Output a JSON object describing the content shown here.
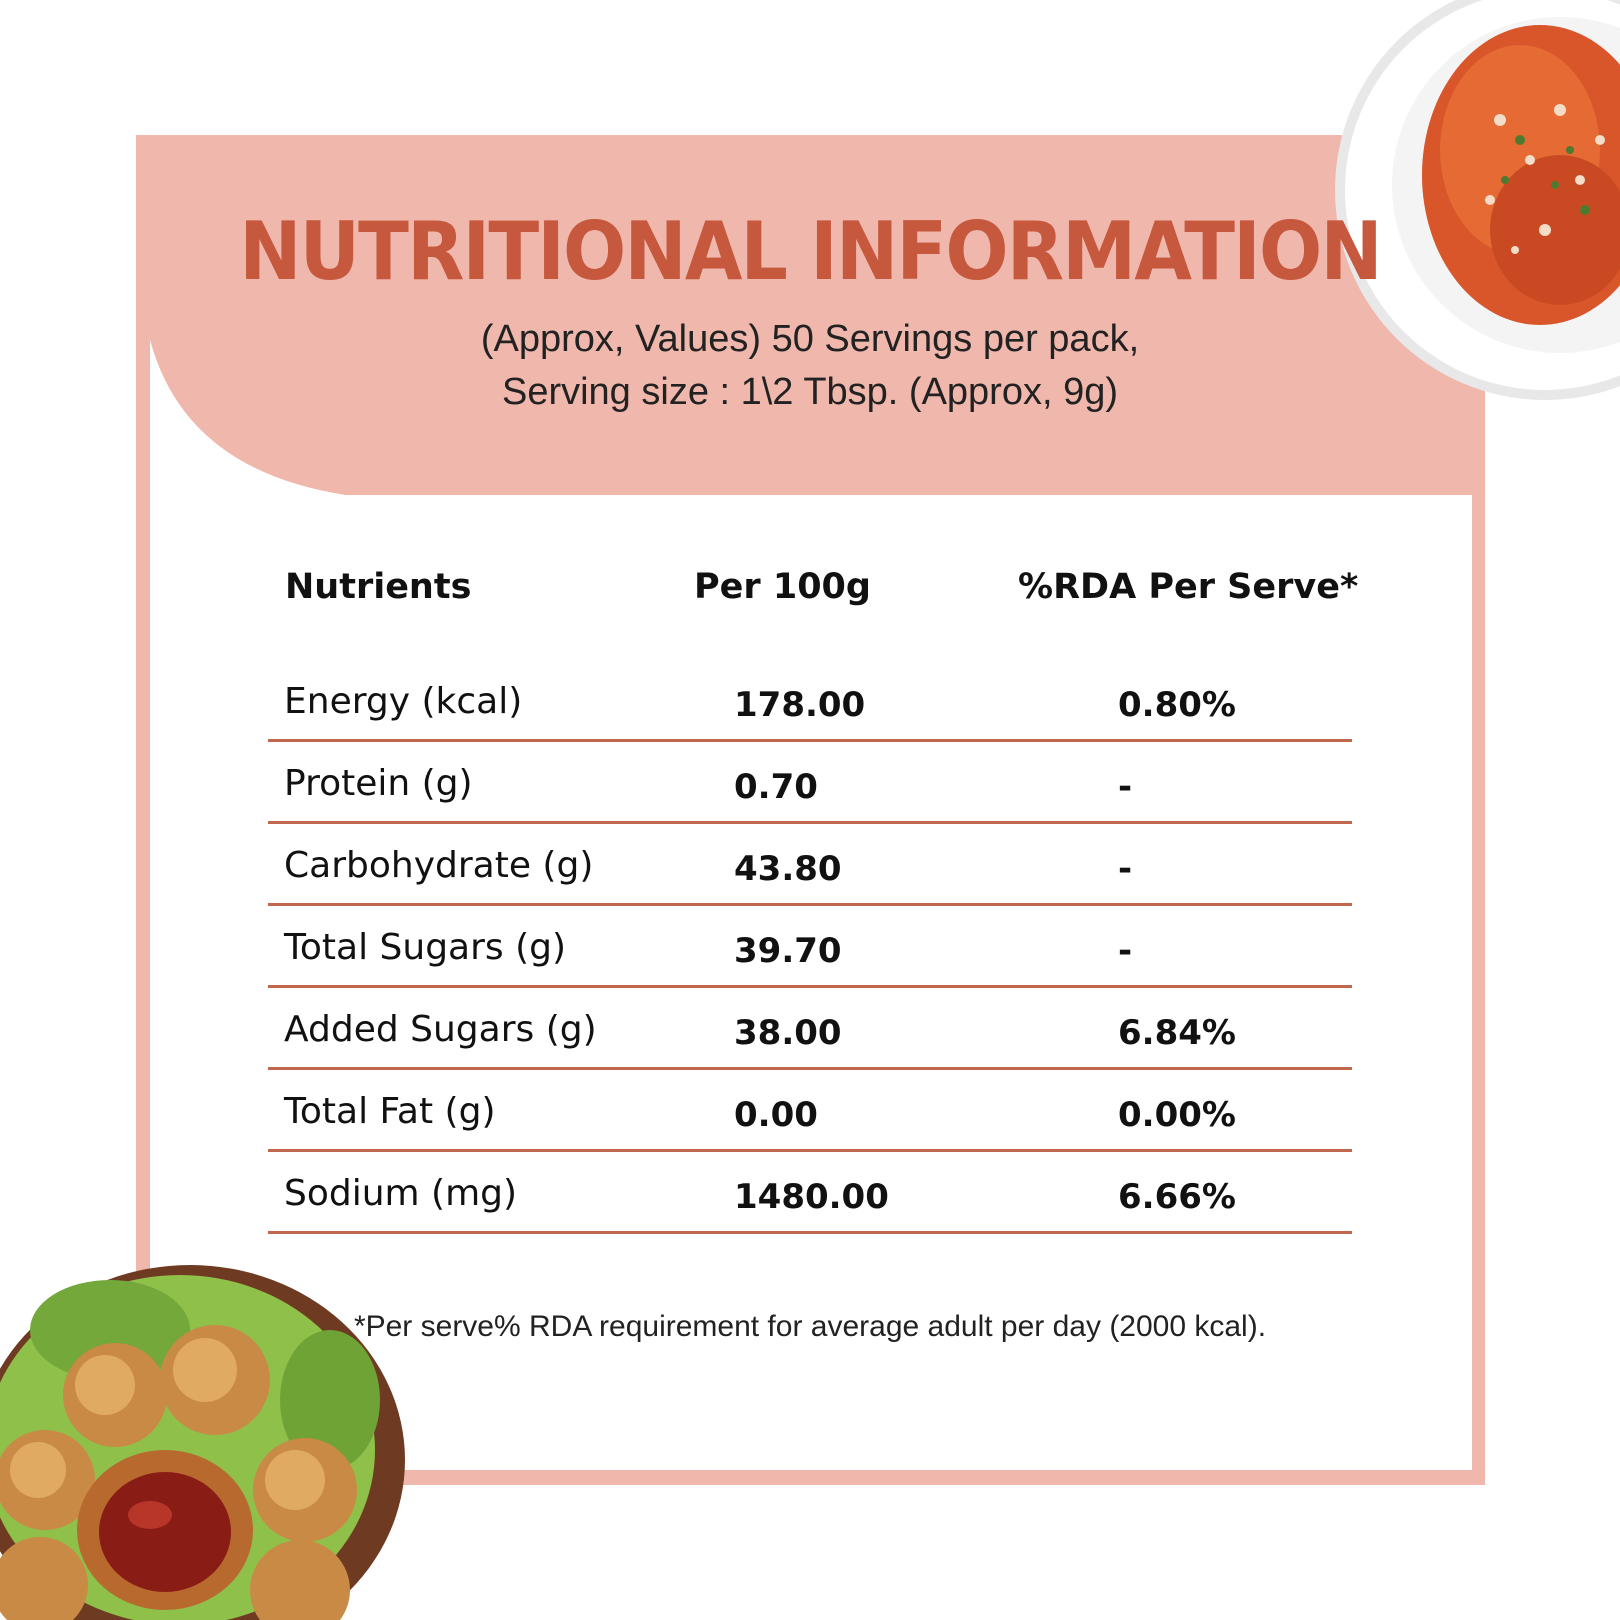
{
  "title": "NUTRITIONAL INFORMATION",
  "subtitle_line1": "(Approx, Values) 50 Servings per pack,",
  "subtitle_line2": "Serving size : 1\\2 Tbsp. (Approx, 9g)",
  "table": {
    "headers": [
      "Nutrients",
      "Per 100g",
      "%RDA Per Serve*"
    ],
    "rows": [
      {
        "nutrient": "Energy (kcal)",
        "per100g": "178.00",
        "rda": "0.80%"
      },
      {
        "nutrient": "Protein (g)",
        "per100g": "0.70",
        "rda": "-"
      },
      {
        "nutrient": "Carbohydrate (g)",
        "per100g": "43.80",
        "rda": "-"
      },
      {
        "nutrient": "Total Sugars (g)",
        "per100g": "39.70",
        "rda": "-"
      },
      {
        "nutrient": "Added Sugars (g)",
        "per100g": "38.00",
        "rda": "6.84%"
      },
      {
        "nutrient": "Total Fat (g)",
        "per100g": "0.00",
        "rda": "0.00%"
      },
      {
        "nutrient": "Sodium (mg)",
        "per100g": "1480.00",
        "rda": "6.66%"
      }
    ]
  },
  "footnote": "*Per serve% RDA requirement for average adult per day (2000 kcal).",
  "colors": {
    "accent": "#c5583d",
    "panel": "#f0b7ac",
    "rule": "#c0674d"
  },
  "images": [
    "pasta-plate-image",
    "fried-snack-bowl-image"
  ]
}
